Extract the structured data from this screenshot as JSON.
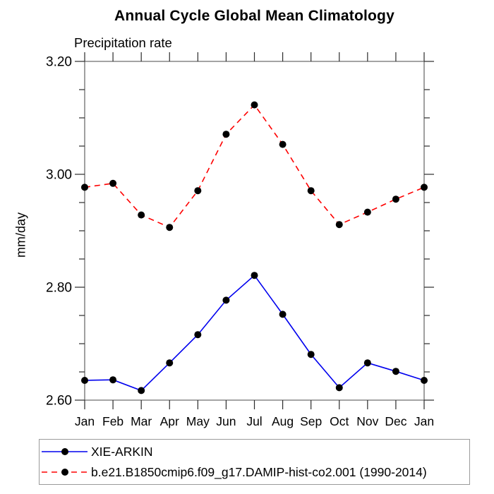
{
  "chart_data": {
    "type": "line",
    "title": "Annual Cycle Global Mean Climatology",
    "subtitle": "Precipitation rate",
    "ylabel": "mm/day",
    "xlabel": "",
    "categories": [
      "Jan",
      "Feb",
      "Mar",
      "Apr",
      "May",
      "Jun",
      "Jul",
      "Aug",
      "Sep",
      "Oct",
      "Nov",
      "Dec",
      "Jan"
    ],
    "ylim": [
      2.6,
      3.2
    ],
    "ytick_labels": [
      "2.60",
      "2.80",
      "3.00",
      "3.20"
    ],
    "yticks_major": [
      2.6,
      2.8,
      3.0,
      3.2
    ],
    "yminor_step": 0.05,
    "grid": false,
    "legend_position": "bottom-box",
    "series": [
      {
        "name": "XIE-ARKIN",
        "color": "#0000ee",
        "line_style": "solid",
        "marker": "circle",
        "marker_color": "#000000",
        "values": [
          2.635,
          2.636,
          2.617,
          2.666,
          2.716,
          2.777,
          2.821,
          2.752,
          2.681,
          2.622,
          2.666,
          2.651,
          2.635
        ]
      },
      {
        "name": "b.e21.B1850cmip6.f09_g17.DAMIP-hist-co2.001 (1990-2014)",
        "color": "#fe0000",
        "line_style": "dashed",
        "marker": "circle",
        "marker_color": "#000000",
        "values": [
          2.977,
          2.984,
          2.928,
          2.906,
          2.971,
          3.071,
          3.123,
          3.053,
          2.971,
          2.911,
          2.933,
          2.956,
          2.977
        ]
      }
    ],
    "axis_color": "#6e6e6e",
    "tick_color": "#2b2b2b",
    "text_color": "#000000"
  }
}
